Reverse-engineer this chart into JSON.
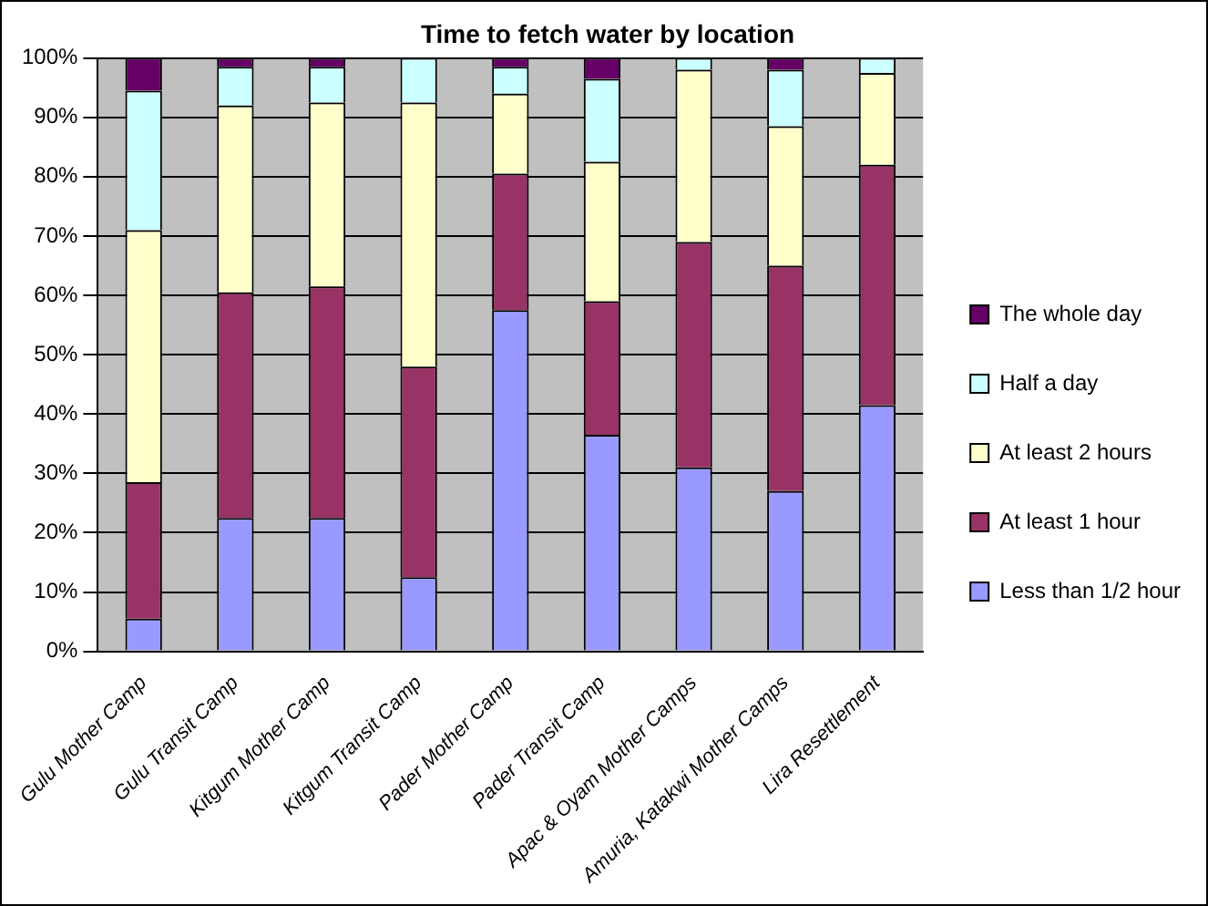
{
  "chart_data": {
    "type": "bar",
    "title": "Time to fetch water by location",
    "stacked": true,
    "grid": "y",
    "legend": "right",
    "categories": [
      "Gulu Mother Camp",
      "Gulu Transit Camp",
      "Kitgum Mother Camp",
      "Kitgum Transit Camp",
      "Pader Mother Camp",
      "Pader Transit Camp",
      "Apac & Oyam Mother Camps",
      "Amuria, Katakwi Mother Camps",
      "Lira Resettlement"
    ],
    "ylim": [
      0,
      100
    ],
    "yticks": [
      {
        "value": 0,
        "label": "0%"
      },
      {
        "value": 10,
        "label": "10%"
      },
      {
        "value": 20,
        "label": "20%"
      },
      {
        "value": 30,
        "label": "30%"
      },
      {
        "value": 40,
        "label": "40%"
      },
      {
        "value": 50,
        "label": "50%"
      },
      {
        "value": 60,
        "label": "60%"
      },
      {
        "value": 70,
        "label": "70%"
      },
      {
        "value": 80,
        "label": "80%"
      },
      {
        "value": 90,
        "label": "90%"
      },
      {
        "value": 100,
        "label": "100%"
      }
    ],
    "series": [
      {
        "name": "Less than 1/2 hour",
        "color": "#9999ff",
        "values": [
          5.5,
          22.5,
          22.5,
          12.5,
          57.5,
          36.5,
          31,
          27,
          41.5
        ]
      },
      {
        "name": "At least 1 hour",
        "color": "#993366",
        "values": [
          23,
          38,
          39,
          35.5,
          23,
          22.5,
          38,
          38,
          40.5
        ]
      },
      {
        "name": "At least 2 hours",
        "color": "#ffffcc",
        "values": [
          42.5,
          31.5,
          31,
          44.5,
          13.5,
          23.5,
          29,
          23.5,
          15.5
        ]
      },
      {
        "name": "Half a day",
        "color": "#ccffff",
        "values": [
          23.5,
          6.5,
          6,
          7.5,
          4.5,
          14,
          2,
          9.5,
          2.5
        ]
      },
      {
        "name": "The whole day",
        "color": "#660066",
        "values": [
          5.5,
          1.5,
          1.5,
          0,
          1.5,
          3.5,
          0,
          2,
          0
        ]
      }
    ]
  }
}
